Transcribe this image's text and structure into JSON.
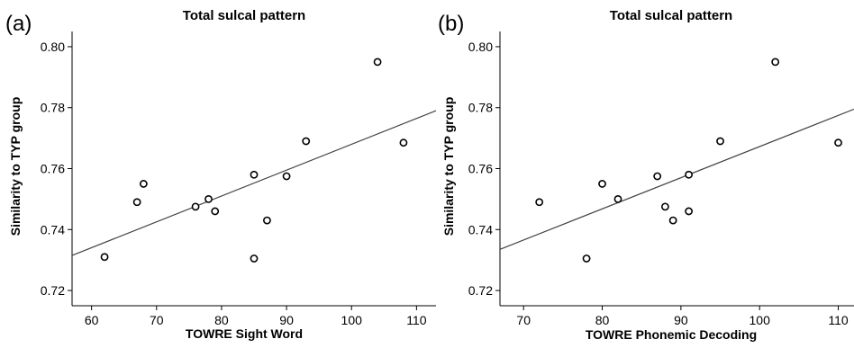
{
  "chart_data": [
    {
      "type": "scatter",
      "panel_label": "(a)",
      "title": "Total sulcal pattern",
      "xlabel": "TOWRE Sight Word",
      "ylabel": "Similarity to TYP group",
      "xlim": [
        57,
        113
      ],
      "ylim": [
        0.715,
        0.805
      ],
      "xticks": [
        60,
        70,
        80,
        90,
        100,
        110
      ],
      "yticks": [
        0.72,
        0.74,
        0.76,
        0.78,
        0.8
      ],
      "ytick_labels": [
        "0.72",
        "0.74",
        "0.76",
        "0.78",
        "0.80"
      ],
      "grid": false,
      "points": [
        {
          "x": 62,
          "y": 0.731
        },
        {
          "x": 67,
          "y": 0.749
        },
        {
          "x": 68,
          "y": 0.755
        },
        {
          "x": 76,
          "y": 0.7475
        },
        {
          "x": 78,
          "y": 0.75
        },
        {
          "x": 79,
          "y": 0.746
        },
        {
          "x": 85,
          "y": 0.758
        },
        {
          "x": 85,
          "y": 0.7305
        },
        {
          "x": 87,
          "y": 0.743
        },
        {
          "x": 90,
          "y": 0.7575
        },
        {
          "x": 93,
          "y": 0.769
        },
        {
          "x": 104,
          "y": 0.795
        },
        {
          "x": 108,
          "y": 0.7685
        }
      ],
      "fit_line": {
        "x": [
          57,
          113
        ],
        "y": [
          0.7315,
          0.779
        ]
      }
    },
    {
      "type": "scatter",
      "panel_label": "(b)",
      "title": "Total sulcal pattern",
      "xlabel": "TOWRE Phonemic Decoding",
      "ylabel": "Similarity to TYP group",
      "xlim": [
        67,
        112
      ],
      "ylim": [
        0.715,
        0.805
      ],
      "xticks": [
        70,
        80,
        90,
        100,
        110
      ],
      "yticks": [
        0.72,
        0.74,
        0.76,
        0.78,
        0.8
      ],
      "ytick_labels": [
        "0.72",
        "0.74",
        "0.76",
        "0.78",
        "0.80"
      ],
      "grid": false,
      "points": [
        {
          "x": 72,
          "y": 0.749
        },
        {
          "x": 78,
          "y": 0.7305
        },
        {
          "x": 80,
          "y": 0.755
        },
        {
          "x": 82,
          "y": 0.75
        },
        {
          "x": 87,
          "y": 0.7575
        },
        {
          "x": 88,
          "y": 0.7475
        },
        {
          "x": 89,
          "y": 0.743
        },
        {
          "x": 91,
          "y": 0.758
        },
        {
          "x": 91,
          "y": 0.746
        },
        {
          "x": 95,
          "y": 0.769
        },
        {
          "x": 102,
          "y": 0.795
        },
        {
          "x": 110,
          "y": 0.7685
        }
      ],
      "fit_line": {
        "x": [
          67,
          112
        ],
        "y": [
          0.7335,
          0.7795
        ]
      }
    }
  ]
}
